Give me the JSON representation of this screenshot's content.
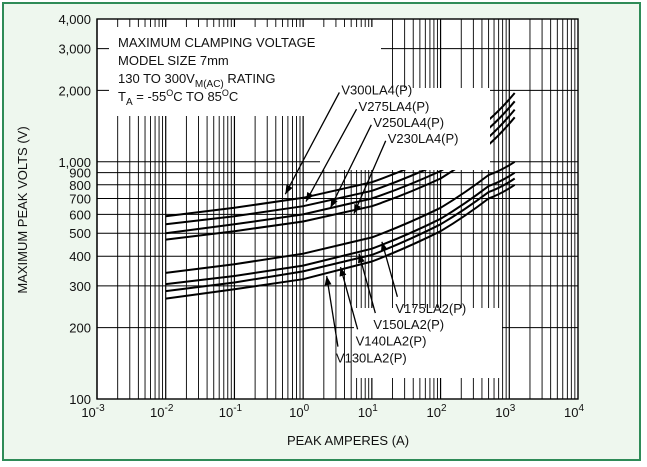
{
  "chart_data": {
    "type": "line",
    "title_lines": [
      "MAXIMUM CLAMPING VOLTAGE",
      "MODEL SIZE 7mm"
    ],
    "rating": {
      "prefix": "130 TO 300V",
      "sub": "M(AC)",
      "suffix": " RATING"
    },
    "temp": {
      "t": "T",
      "t_sub": "A",
      "mid": " = -55",
      "deg1": "O",
      "mid2": "C TO 85",
      "deg2": "O",
      "end": "C"
    },
    "xlabel": "PEAK AMPERES (A)",
    "ylabel": "MAXIMUM PEAK VOLTS (V)",
    "xscale": "log",
    "yscale": "log",
    "xlim": [
      0.001,
      10000
    ],
    "ylim": [
      100,
      4000
    ],
    "x_ticks": [
      {
        "value": 0.001,
        "base": "10",
        "exp": "-3"
      },
      {
        "value": 0.01,
        "base": "10",
        "exp": "-2"
      },
      {
        "value": 0.1,
        "base": "10",
        "exp": "-1"
      },
      {
        "value": 1,
        "base": "10",
        "exp": "0"
      },
      {
        "value": 10,
        "base": "10",
        "exp": "1"
      },
      {
        "value": 100,
        "base": "10",
        "exp": "2"
      },
      {
        "value": 1000,
        "base": "10",
        "exp": "3"
      },
      {
        "value": 10000,
        "base": "10",
        "exp": "4"
      }
    ],
    "y_ticks": [
      {
        "value": 100,
        "label": "100"
      },
      {
        "value": 200,
        "label": "200"
      },
      {
        "value": 300,
        "label": "300"
      },
      {
        "value": 400,
        "label": "400"
      },
      {
        "value": 500,
        "label": "500"
      },
      {
        "value": 600,
        "label": "600"
      },
      {
        "value": 700,
        "label": "700"
      },
      {
        "value": 800,
        "label": "800"
      },
      {
        "value": 900,
        "label": "900"
      },
      {
        "value": 1000,
        "label": "1,000"
      },
      {
        "value": 2000,
        "label": "2,000"
      },
      {
        "value": 3000,
        "label": "3,000"
      },
      {
        "value": 4000,
        "label": "4,000"
      }
    ],
    "grid": true,
    "series": [
      {
        "name": "V300LA4(P)",
        "x": [
          0.01,
          0.1,
          1,
          10,
          100,
          500,
          1200
        ],
        "y": [
          590,
          640,
          705,
          820,
          1080,
          1500,
          1950
        ]
      },
      {
        "name": "V275LA4(P)",
        "x": [
          0.01,
          0.1,
          1,
          10,
          100,
          500,
          1200
        ],
        "y": [
          545,
          590,
          650,
          755,
          990,
          1380,
          1800
        ]
      },
      {
        "name": "V250LA4(P)",
        "x": [
          0.01,
          0.1,
          1,
          10,
          100,
          500,
          1200
        ],
        "y": [
          500,
          545,
          600,
          700,
          915,
          1270,
          1660
        ]
      },
      {
        "name": "V230LA4(P)",
        "x": [
          0.01,
          0.1,
          1,
          10,
          100,
          500,
          1200
        ],
        "y": [
          470,
          510,
          560,
          650,
          850,
          1180,
          1540
        ]
      },
      {
        "name": "V175LA2(P)",
        "x": [
          0.01,
          0.1,
          1,
          10,
          100,
          500,
          1200
        ],
        "y": [
          340,
          370,
          410,
          480,
          640,
          880,
          1000
        ]
      },
      {
        "name": "V150LA2(P)",
        "x": [
          0.01,
          0.1,
          1,
          10,
          100,
          500,
          1200
        ],
        "y": [
          305,
          330,
          365,
          430,
          575,
          790,
          900
        ]
      },
      {
        "name": "V140LA2(P)",
        "x": [
          0.01,
          0.1,
          1,
          10,
          100,
          500,
          1200
        ],
        "y": [
          285,
          310,
          345,
          405,
          545,
          745,
          850
        ]
      },
      {
        "name": "V130LA2(P)",
        "x": [
          0.01,
          0.1,
          1,
          10,
          100,
          500,
          1200
        ],
        "y": [
          265,
          290,
          320,
          380,
          510,
          700,
          800
        ]
      }
    ],
    "annotations": [
      {
        "series": "V300LA4(P)",
        "label_at": [
          3.6,
          2000
        ],
        "arrow_to": [
          0.55,
          730
        ]
      },
      {
        "series": "V275LA4(P)",
        "label_at": [
          6.4,
          1700
        ],
        "arrow_to": [
          1.1,
          680
        ]
      },
      {
        "series": "V250LA4(P)",
        "label_at": [
          10.5,
          1460
        ],
        "arrow_to": [
          2.5,
          640
        ]
      },
      {
        "series": "V230LA4(P)",
        "label_at": [
          17,
          1250
        ],
        "arrow_to": [
          5.5,
          605
        ]
      },
      {
        "series": "V175LA2(P)",
        "label_at": [
          22,
          240
        ],
        "arrow_to": [
          14,
          460
        ]
      },
      {
        "series": "V150LA2(P)",
        "label_at": [
          10.5,
          205
        ],
        "arrow_to": [
          6.5,
          410
        ]
      },
      {
        "series": "V140LA2(P)",
        "label_at": [
          5.8,
          175
        ],
        "arrow_to": [
          3.5,
          360
        ]
      },
      {
        "series": "V130LA2(P)",
        "label_at": [
          3,
          148
        ],
        "arrow_to": [
          2.2,
          330
        ]
      }
    ]
  }
}
